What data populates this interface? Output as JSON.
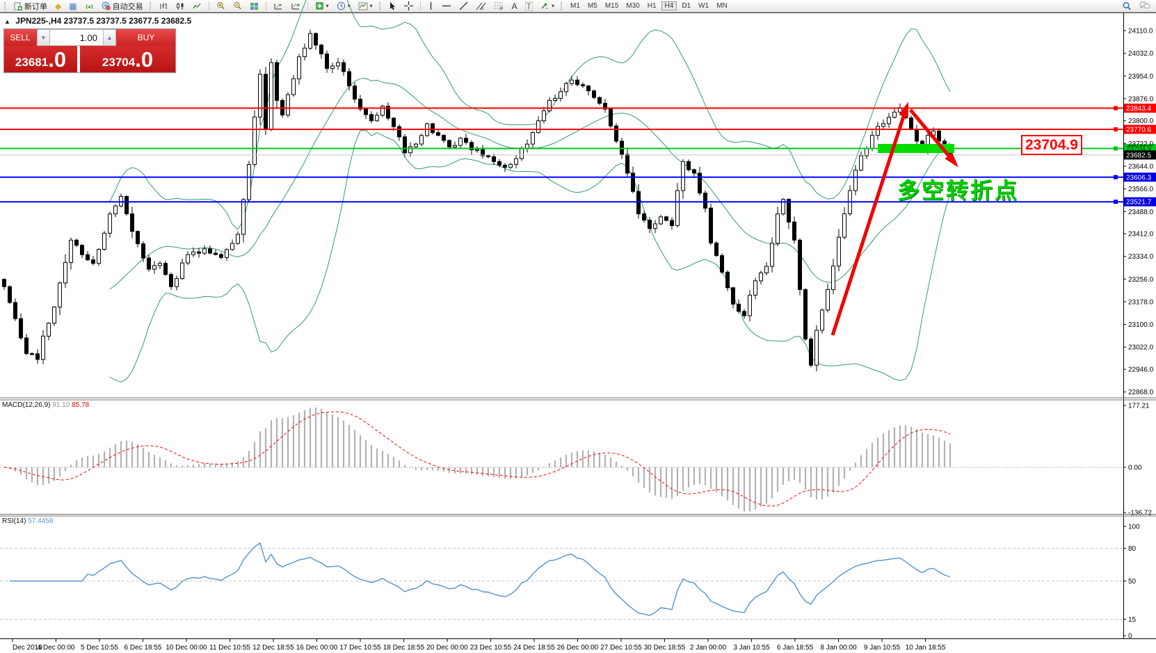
{
  "toolbar": {
    "new_order_label": "新订单",
    "autotrading_label": "自动交易",
    "timeframes": [
      "M1",
      "M5",
      "M15",
      "M30",
      "H1",
      "H4",
      "D1",
      "W1",
      "MN"
    ],
    "active_timeframe": "H4",
    "tool_icons": [
      "layouts",
      "market-watch",
      "signals",
      "chart-bars",
      "chart-candles",
      "chart-line",
      "zoom-in",
      "zoom-out",
      "tile-windows",
      "chart-shift",
      "chart-autoscroll",
      "indicators-add",
      "periods",
      "templates",
      "cursor",
      "crosshair",
      "vertical-line",
      "horizontal-line",
      "trendline",
      "equidistant-channel",
      "fibonacci",
      "text",
      "text-label",
      "arrows",
      "search",
      "comments"
    ]
  },
  "quote_line": {
    "symbol": "JPN225-,H4",
    "ohlc": "23737.5 23737.5 23677.5 23682.5"
  },
  "trade_panel": {
    "sell_label": "SELL",
    "buy_label": "BUY",
    "volume": "1.00",
    "sell_price_main": "23681",
    "sell_price_sub": ".0",
    "buy_price_main": "23704",
    "buy_price_sub": ".0"
  },
  "price_axis": {
    "ticks": [
      "24110.0",
      "24032.0",
      "23954.0",
      "23876.0",
      "23800.0",
      "23722.0",
      "23644.0",
      "23566.0",
      "23488.0",
      "23412.0",
      "23334.0",
      "23256.0",
      "23178.0",
      "23100.0",
      "23022.0",
      "22946.0",
      "22868.0"
    ]
  },
  "macd_panel": {
    "label": "MACD(12,26,9)",
    "value_main": "91.10",
    "value_signal": "85.78",
    "axis": [
      "177.21",
      "0.00",
      "-136.72"
    ]
  },
  "rsi_panel": {
    "label": "RSI(14)",
    "value": "57.4458",
    "axis": [
      "100",
      "80",
      "50",
      "15",
      "0"
    ]
  },
  "time_axis": [
    "Dec 2019",
    "4 Dec 00:00",
    "5 Dec 10:55",
    "6 Dec 18:55",
    "10 Dec 00:00",
    "11 Dec 10:55",
    "12 Dec 18:55",
    "16 Dec 00:00",
    "17 Dec 10:55",
    "18 Dec 18:55",
    "20 Dec 00:00",
    "23 Dec 10:55",
    "24 Dec 18:55",
    "26 Dec 00:00",
    "27 Dec 10:55",
    "30 Dec 18:55",
    "2 Jan 00:00",
    "3 Jan 10:55",
    "6 Jan 18:55",
    "8 Jan 00:00",
    "9 Jan 10:55",
    "10 Jan 18:55"
  ],
  "annotation": {
    "text": "多空转折点",
    "color": "#00cf00"
  },
  "callout": {
    "text": "23704.9"
  },
  "chart_data": {
    "type": "candlestick",
    "symbol": "JPN225-",
    "timeframe": "H4",
    "open": 23737.5,
    "high": 23737.5,
    "low": 23677.5,
    "close": 23682.5,
    "visible_price_range": [
      22868.0,
      24149.0
    ],
    "bar_count": 171,
    "close_anchors": [
      [
        0,
        23230
      ],
      [
        2,
        23120
      ],
      [
        4,
        23000
      ],
      [
        6,
        22980
      ],
      [
        7,
        23060
      ],
      [
        9,
        23160
      ],
      [
        12,
        23390
      ],
      [
        14,
        23340
      ],
      [
        16,
        23310
      ],
      [
        19,
        23480
      ],
      [
        21,
        23540
      ],
      [
        23,
        23420
      ],
      [
        26,
        23290
      ],
      [
        28,
        23310
      ],
      [
        30,
        23230
      ],
      [
        33,
        23340
      ],
      [
        36,
        23360
      ],
      [
        39,
        23330
      ],
      [
        42,
        23410
      ],
      [
        44,
        23650
      ],
      [
        46,
        23960
      ],
      [
        47,
        23770
      ],
      [
        48,
        24000
      ],
      [
        49,
        23870
      ],
      [
        50,
        23820
      ],
      [
        51,
        23890
      ],
      [
        53,
        24020
      ],
      [
        55,
        24100
      ],
      [
        56,
        24060
      ],
      [
        58,
        23980
      ],
      [
        60,
        24000
      ],
      [
        62,
        23920
      ],
      [
        64,
        23840
      ],
      [
        66,
        23800
      ],
      [
        68,
        23850
      ],
      [
        70,
        23780
      ],
      [
        72,
        23690
      ],
      [
        74,
        23720
      ],
      [
        76,
        23790
      ],
      [
        78,
        23750
      ],
      [
        80,
        23710
      ],
      [
        82,
        23740
      ],
      [
        84,
        23700
      ],
      [
        86,
        23680
      ],
      [
        88,
        23660
      ],
      [
        90,
        23640
      ],
      [
        92,
        23670
      ],
      [
        94,
        23720
      ],
      [
        96,
        23800
      ],
      [
        98,
        23870
      ],
      [
        100,
        23900
      ],
      [
        102,
        23940
      ],
      [
        104,
        23920
      ],
      [
        106,
        23880
      ],
      [
        108,
        23840
      ],
      [
        110,
        23730
      ],
      [
        112,
        23620
      ],
      [
        114,
        23480
      ],
      [
        116,
        23430
      ],
      [
        118,
        23470
      ],
      [
        120,
        23440
      ],
      [
        121,
        23560
      ],
      [
        122,
        23660
      ],
      [
        124,
        23620
      ],
      [
        126,
        23500
      ],
      [
        127,
        23380
      ],
      [
        129,
        23280
      ],
      [
        131,
        23170
      ],
      [
        133,
        23130
      ],
      [
        135,
        23250
      ],
      [
        137,
        23300
      ],
      [
        139,
        23480
      ],
      [
        140,
        23530
      ],
      [
        142,
        23390
      ],
      [
        143,
        23220
      ],
      [
        144,
        23050
      ],
      [
        145,
        22960
      ],
      [
        146,
        23080
      ],
      [
        148,
        23220
      ],
      [
        150,
        23400
      ],
      [
        152,
        23560
      ],
      [
        154,
        23680
      ],
      [
        156,
        23750
      ],
      [
        158,
        23790
      ],
      [
        160,
        23830
      ],
      [
        161,
        23845
      ],
      [
        162,
        23810
      ],
      [
        163,
        23770
      ],
      [
        164,
        23730
      ],
      [
        165,
        23700
      ],
      [
        166,
        23750
      ],
      [
        167,
        23765
      ],
      [
        168,
        23730
      ],
      [
        169,
        23700
      ],
      [
        170,
        23682.5
      ]
    ],
    "bollinger": {
      "period": 20,
      "deviation": 2,
      "color": "#2f9e68"
    },
    "levels": [
      {
        "price": 23843.4,
        "label": "23843.4",
        "color": "#ff0000",
        "width": 2,
        "label_bg": "#ff0000",
        "label_fg": "#ffffff"
      },
      {
        "price": 23770.6,
        "label": "23770.6",
        "color": "#ff0000",
        "width": 2,
        "label_bg": "#ff0000",
        "label_fg": "#ffffff"
      },
      {
        "price": 23704.9,
        "label": "23704.9",
        "color": "#00c41d",
        "width": 2,
        "label_bg": "#00cc22",
        "label_fg": "#003300"
      },
      {
        "price": 23682.5,
        "label": "23682.5",
        "color": "#c4c4c4",
        "width": 1,
        "label_bg": "#000000",
        "label_fg": "#ffffff"
      },
      {
        "price": 23606.3,
        "label": "23606.3",
        "color": "#0000ff",
        "width": 2,
        "label_bg": "#0000e0",
        "label_fg": "#ffffff"
      },
      {
        "price": 23521.7,
        "label": "23521.7",
        "color": "#0000ff",
        "width": 2,
        "label_bg": "#0000e0",
        "label_fg": "#ffffff"
      }
    ],
    "highlight_zone": {
      "price": 23704.9,
      "color": "#00dd00"
    },
    "macd": {
      "fast": 12,
      "slow": 26,
      "signal": 9,
      "main_value": 91.1,
      "signal_value": 85.78,
      "hist_color": "#b2b2b2",
      "signal_color": "#ff0000"
    },
    "rsi": {
      "period": 14,
      "value": 57.4458,
      "color": "#4f94cd",
      "levels": [
        80,
        50,
        15
      ]
    }
  }
}
